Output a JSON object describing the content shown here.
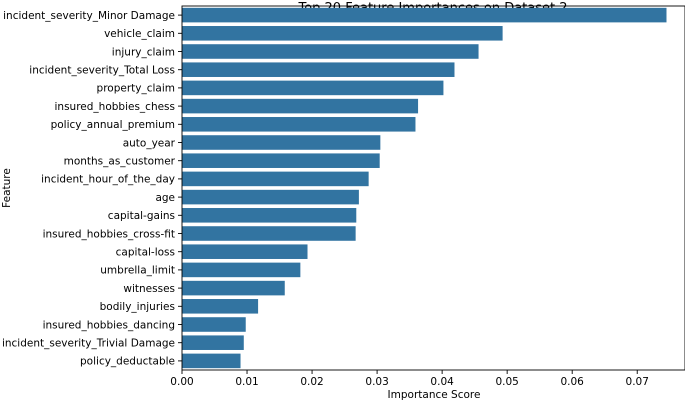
{
  "chart_data": {
    "type": "bar",
    "orientation": "horizontal",
    "title": "Top 20 Feature Importances on Dataset 2",
    "xlabel": "Importance Score",
    "ylabel": "Feature",
    "xlim": [
      0,
      0.0775
    ],
    "grid": false,
    "bar_color": "#3274a1",
    "categories": [
      "incident_severity_Minor Damage",
      "vehicle_claim",
      "injury_claim",
      "incident_severity_Total Loss",
      "property_claim",
      "insured_hobbies_chess",
      "policy_annual_premium",
      "auto_year",
      "months_as_customer",
      "incident_hour_of_the_day",
      "age",
      "capital-gains",
      "insured_hobbies_cross-fit",
      "capital-loss",
      "umbrella_limit",
      "witnesses",
      "bodily_injuries",
      "insured_hobbies_dancing",
      "incident_severity_Trivial Damage",
      "policy_deductable"
    ],
    "values": [
      0.0745,
      0.0493,
      0.0456,
      0.0419,
      0.0402,
      0.0363,
      0.0359,
      0.0305,
      0.0304,
      0.0287,
      0.0272,
      0.0268,
      0.0267,
      0.0193,
      0.0182,
      0.0158,
      0.0117,
      0.0098,
      0.0095,
      0.009
    ],
    "x_ticks": [
      "0.00",
      "0.01",
      "0.02",
      "0.03",
      "0.04",
      "0.05",
      "0.06",
      "0.07"
    ]
  }
}
